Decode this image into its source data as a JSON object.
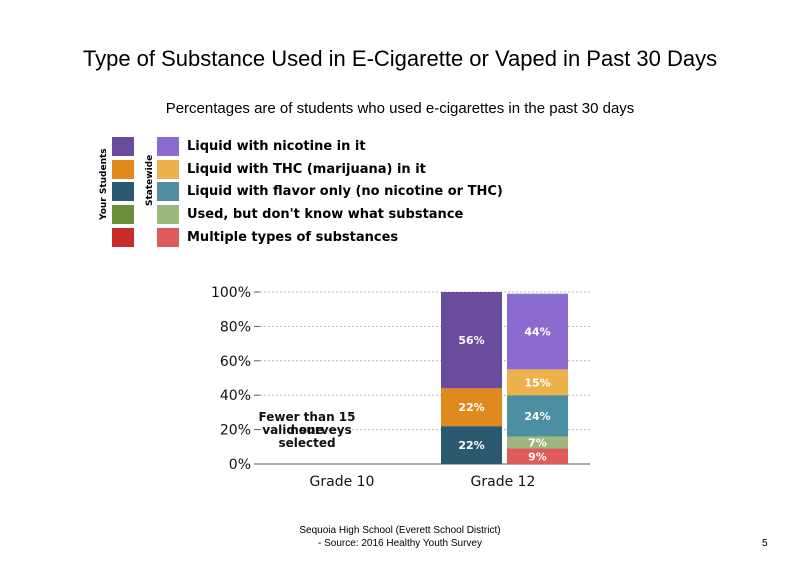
{
  "title": "Type of Substance Used in E-Cigarette or Vaped in Past 30 Days",
  "subtitle": "Percentages are of students who used e-cigarettes in the past 30 days",
  "legend": {
    "your_students_label": "Your Students",
    "statewide_label": "Statewide",
    "items": [
      {
        "label": "Liquid with nicotine in it",
        "your_color": "#6a4c9c",
        "state_color": "#8c6bcf"
      },
      {
        "label": "Liquid with THC (marijuana) in it",
        "your_color": "#e08a1e",
        "state_color": "#ecb14b"
      },
      {
        "label": "Liquid with flavor only (no nicotine or THC)",
        "your_color": "#2b5a70",
        "state_color": "#4d8ea2"
      },
      {
        "label": "Used, but don't know what substance",
        "your_color": "#6a8f3a",
        "state_color": "#9db77e"
      },
      {
        "label": "Multiple types of substances",
        "your_color": "#c92a2a",
        "state_color": "#df5a5a"
      }
    ]
  },
  "chart_data": {
    "type": "bar",
    "stacked": true,
    "categories": [
      "Grade 10",
      "Grade 12"
    ],
    "ylim": [
      0,
      100
    ],
    "yticks": [
      "0%",
      "20%",
      "40%",
      "60%",
      "80%",
      "100%"
    ],
    "grid": true,
    "no_data_note": {
      "category": "Grade 10",
      "text_lines": [
        "Fewer than 15",
        "valid surveys"
      ],
      "overlap_text_lines": [
        "none",
        "selected"
      ]
    },
    "groups": [
      {
        "category": "Grade 12",
        "population": "Your Students",
        "segments": [
          {
            "name": "Liquid with flavor only (no nicotine or THC)",
            "value": 22,
            "label": "22%",
            "color": "#2b5a70"
          },
          {
            "name": "Liquid with THC (marijuana) in it",
            "value": 22,
            "label": "22%",
            "color": "#e08a1e"
          },
          {
            "name": "Liquid with nicotine in it",
            "value": 56,
            "label": "56%",
            "color": "#6a4c9c"
          }
        ]
      },
      {
        "category": "Grade 12",
        "population": "Statewide",
        "segments": [
          {
            "name": "Multiple types of substances",
            "value": 9,
            "label": "9%",
            "color": "#df5a5a"
          },
          {
            "name": "Used, but don't know what substance",
            "value": 7,
            "label": "7%",
            "color": "#9db77e"
          },
          {
            "name": "Liquid with flavor only (no nicotine or THC)",
            "value": 24,
            "label": "24%",
            "color": "#4d8ea2"
          },
          {
            "name": "Liquid with THC (marijuana) in it",
            "value": 15,
            "label": "15%",
            "color": "#ecb14b"
          },
          {
            "name": "Liquid with nicotine in it",
            "value": 44,
            "label": "44%",
            "color": "#8c6bcf"
          }
        ]
      }
    ]
  },
  "footer": {
    "line1": "Sequoia High School (Everett School District)",
    "line2": "- Source: 2016 Healthy Youth Survey"
  },
  "page_number": "5"
}
